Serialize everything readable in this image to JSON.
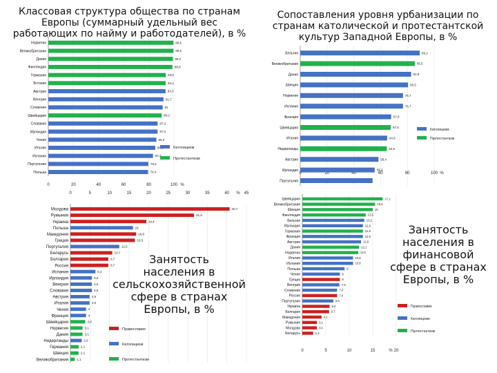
{
  "colors": {
    "blue": "#4472c4",
    "green": "#22b14c",
    "red": "#cc2020",
    "axis": "#888888"
  },
  "chart_data": [
    {
      "type": "bar",
      "title": "Классовая структура общества по странам\nЕвропы (суммарный удельный вес\nработающих по найму и работодателей), в %",
      "categories": [
        "Норвегия",
        "Великобритания",
        "Дания",
        "Финляндия",
        "Германия",
        "Эстония",
        "Австрия",
        "Венгрия",
        "Словения",
        "Швейцария",
        "Словакия",
        "Ирландия",
        "Чехия",
        "Италия",
        "Испания",
        "Португалия",
        "Польша"
      ],
      "values": [
        99.6,
        99.6,
        99.2,
        98.8,
        93.5,
        93.4,
        93.3,
        91.7,
        91,
        90.2,
        87.0,
        87.0,
        86.0,
        85.1,
        83.3,
        79.6,
        79.4
      ],
      "value_labels": [
        "99,6",
        "99,6",
        "99,2",
        "98,8",
        "93,5",
        "93,4",
        "93,3",
        "91,7",
        "91",
        "90,2",
        "87,0",
        "87,0",
        "86,0",
        "85,1",
        "83,3",
        "79,6",
        "79,4"
      ],
      "groups": [
        "protestant",
        "protestant",
        "protestant",
        "protestant",
        "protestant",
        "protestant",
        "catholic",
        "catholic",
        "catholic",
        "protestant",
        "catholic",
        "catholic",
        "catholic",
        "catholic",
        "catholic",
        "catholic",
        "catholic"
      ],
      "xlim": [
        0,
        100
      ],
      "ticks": [
        "0",
        "20",
        "40",
        "60",
        "80",
        "100"
      ],
      "unit": "%",
      "legend": [
        {
          "key": "catholic",
          "label": "Католицизм"
        },
        {
          "key": "protestant",
          "label": "Протестантизм"
        }
      ]
    },
    {
      "type": "bar",
      "title": "Сопоставления уровня урбанизации по\nстранам католической и протестантской\nкультур Западной Европы, в %",
      "categories": [
        "Бельгия",
        "Великобритания",
        "Дания",
        "Швеция",
        "Норвегия",
        "Испания",
        "Франция",
        "Швейцария",
        "Италия",
        "Нидерланды",
        "Австрия",
        "Ирландия",
        "Португалия"
      ],
      "values": [
        89.2,
        85.5,
        82.8,
        80.5,
        76.7,
        76.7,
        67.9,
        67.5,
        64.9,
        64.6,
        58.4,
        55.6,
        54.0
      ],
      "value_labels": [
        "89,2",
        "85,5",
        "82,8",
        "80,5",
        "76,7",
        "76,7",
        "67,9",
        "67,5",
        "64,9",
        "64,6",
        "58,4",
        "55,6",
        ""
      ],
      "groups": [
        "catholic",
        "protestant",
        "catholic",
        "catholic",
        "catholic",
        "catholic",
        "catholic",
        "protestant",
        "catholic",
        "protestant",
        "catholic",
        "catholic",
        "catholic"
      ],
      "xlim": [
        0,
        100
      ],
      "ticks": [
        "0",
        "20",
        "40",
        "60",
        "80",
        "100"
      ],
      "unit": "%",
      "legend": [
        {
          "key": "catholic",
          "label": "Католицизм"
        },
        {
          "key": "protestant",
          "label": "Протестантизм"
        }
      ]
    },
    {
      "type": "bar",
      "title": "Занятость\nнаселения в\nсельскохозяйственной\nсфере в странах\nЕвропы, в %",
      "categories": [
        "Молдова",
        "Румыния",
        "Украина",
        "Польша",
        "Македония",
        "Греция",
        "Португалия",
        "Беларусь",
        "Болгария",
        "Россия",
        "Испания",
        "Ирландия",
        "Венгрия",
        "Словакия",
        "Австрия",
        "Италия",
        "Чехия",
        "Франция",
        "Швейцария",
        "Норвегия",
        "Дания",
        "Нидерланды",
        "Германия",
        "Швеция",
        "Великобритания"
      ],
      "values": [
        40.7,
        31.6,
        19.4,
        16,
        16.8,
        16.5,
        12.5,
        10.7,
        9.7,
        9.7,
        6.4,
        5.5,
        5.5,
        5.5,
        4.9,
        4.9,
        4,
        4,
        3.8,
        3.1,
        3.1,
        2.9,
        2.1,
        2.1,
        1.1
      ],
      "value_labels": [
        "40,7",
        "31,6",
        "19,4",
        "16",
        "16,8",
        "16,5",
        "12,5",
        "10,7",
        "9,7",
        "9,7",
        "6,4",
        "5,5",
        "5,5",
        "5,5",
        "4,9",
        "4,9",
        "4",
        "4",
        "3,8",
        "3,1",
        "3,1",
        "2,9",
        "2,1",
        "2,1",
        "1,1"
      ],
      "groups": [
        "orthodox",
        "orthodox",
        "orthodox",
        "catholic",
        "orthodox",
        "orthodox",
        "catholic",
        "orthodox",
        "orthodox",
        "orthodox",
        "catholic",
        "catholic",
        "catholic",
        "catholic",
        "catholic",
        "catholic",
        "catholic",
        "catholic",
        "protestant",
        "protestant",
        "protestant",
        "catholic",
        "protestant",
        "protestant",
        "protestant"
      ],
      "xlim": [
        0,
        45
      ],
      "ticks": [
        "0",
        "5",
        "10",
        "15",
        "20",
        "25",
        "30",
        "35",
        "40",
        "45"
      ],
      "unit": "%",
      "legend": [
        {
          "key": "orthodox",
          "label": "Православие"
        },
        {
          "key": "catholic",
          "label": "Католицизм"
        },
        {
          "key": "protestant",
          "label": "Протестантизм"
        }
      ]
    },
    {
      "type": "bar",
      "title": "Занятость\nнаселения в\nфинансовой\nсфере в странах\nЕвропы, в %",
      "categories": [
        "Швейцария",
        "Великобритания",
        "Швеция",
        "Финляндия",
        "Бельгия",
        "Ирландия",
        "Германия",
        "Франция",
        "Австрия",
        "Дания",
        "Норвегия",
        "Италия",
        "Испания",
        "Польша",
        "Чехия",
        "Греция",
        "Венгрия",
        "Словения",
        "Россия",
        "Португалия",
        "Украина",
        "Болгария",
        "Македония",
        "Румыния",
        "Молдова",
        "Беларусь"
      ],
      "values": [
        17.1,
        15.5,
        15,
        13.5,
        13.2,
        12.9,
        12.9,
        12.9,
        12.5,
        12.1,
        11.9,
        10.8,
        10.8,
        9,
        8,
        8,
        7.9,
        7.4,
        7.4,
        6.6,
        5.8,
        5.7,
        4.1,
        3.1,
        3.1,
        2.3
      ],
      "value_labels": [
        "17,1",
        "15,5",
        "15",
        "13,5",
        "13,2",
        "12,9",
        "12,9",
        "12,9",
        "12,5",
        "12,1",
        "11,9",
        "10,8",
        "10,8",
        "9",
        "8",
        "8",
        "7,9",
        "7,4",
        "7,4",
        "6,6",
        "5,8",
        "5,7",
        "4,1",
        "3,1",
        "3,1",
        "2,3"
      ],
      "groups": [
        "protestant",
        "protestant",
        "protestant",
        "protestant",
        "catholic",
        "catholic",
        "protestant",
        "catholic",
        "catholic",
        "protestant",
        "protestant",
        "catholic",
        "catholic",
        "catholic",
        "catholic",
        "orthodox",
        "catholic",
        "catholic",
        "orthodox",
        "catholic",
        "orthodox",
        "orthodox",
        "orthodox",
        "orthodox",
        "orthodox",
        "orthodox"
      ],
      "xlim": [
        0,
        20
      ],
      "ticks": [
        "0",
        "5",
        "10",
        "15",
        "20"
      ],
      "unit": "%",
      "legend": [
        {
          "key": "orthodox",
          "label": "Православие"
        },
        {
          "key": "catholic",
          "label": "Католицизм"
        },
        {
          "key": "protestant",
          "label": "Протестантизм"
        }
      ]
    }
  ]
}
